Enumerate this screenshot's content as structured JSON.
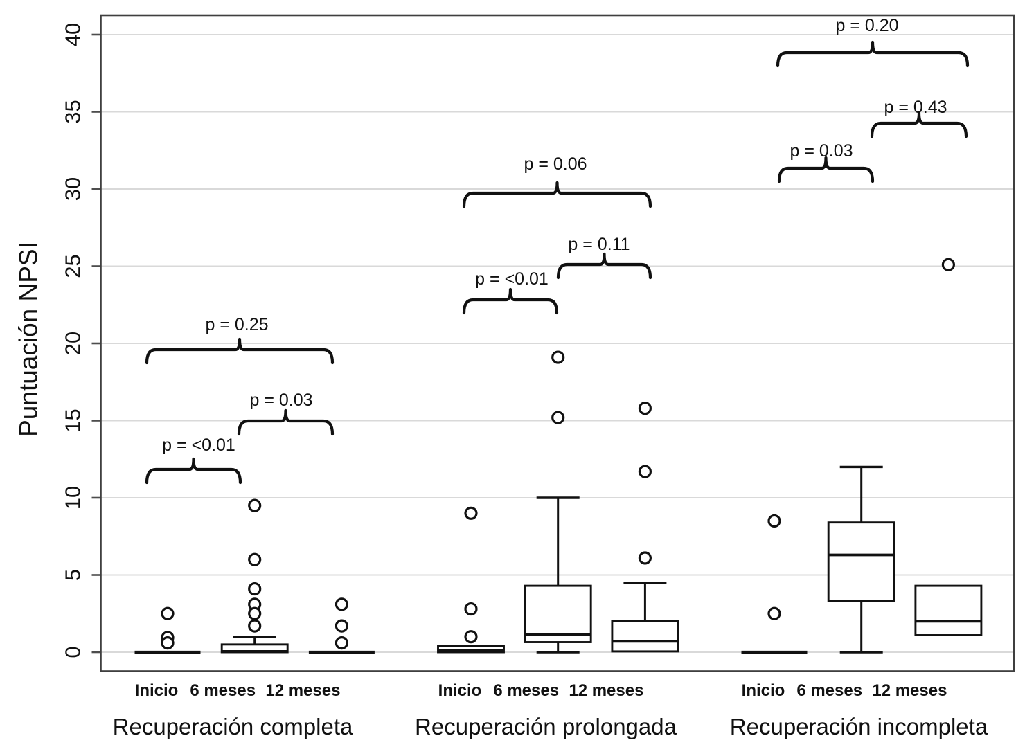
{
  "figure": {
    "y_axis_title": "Puntuación NPSI",
    "colors": {
      "ink": "#111111",
      "frame": "#3f3f3f",
      "grid": "#d9d9d9",
      "tick": "#4d4d4d",
      "background": "#ffffff"
    }
  },
  "chart_data": {
    "type": "boxplot",
    "title": "",
    "xlabel": "",
    "ylabel": "Puntuación NPSI",
    "ylim": [
      0,
      40
    ],
    "yticks": [
      0,
      5,
      10,
      15,
      20,
      25,
      30,
      35,
      40
    ],
    "grid": true,
    "legend": "none",
    "x_groups": [
      {
        "label": "Recuperación completa",
        "timepoints": [
          "Inicio",
          "6 meses",
          "12 meses"
        ]
      },
      {
        "label": "Recuperación prolongada",
        "timepoints": [
          "Inicio",
          "6 meses",
          "12 meses"
        ]
      },
      {
        "label": "Recuperación incompleta",
        "timepoints": [
          "Inicio",
          "6 meses",
          "12 meses"
        ]
      }
    ],
    "boxes": [
      {
        "group": "Recuperación completa",
        "timepoint": "Inicio",
        "q1": 0,
        "median": 0,
        "q3": 0,
        "outliers": [
          2.5,
          0.95,
          0.6
        ]
      },
      {
        "group": "Recuperación completa",
        "timepoint": "6 meses",
        "q1": 0,
        "median": 0.05,
        "q3": 0.5,
        "whisker_high": 1.0,
        "outliers": [
          9.5,
          6.0,
          4.1,
          3.1,
          2.5,
          1.7
        ]
      },
      {
        "group": "Recuperación completa",
        "timepoint": "12 meses",
        "q1": 0,
        "median": 0,
        "q3": 0,
        "outliers": [
          3.1,
          1.7,
          0.6
        ]
      },
      {
        "group": "Recuperación prolongada",
        "timepoint": "Inicio",
        "q1": 0,
        "median": 0.12,
        "q3": 0.4,
        "outliers": [
          9.0,
          2.8,
          1.0
        ]
      },
      {
        "group": "Recuperación prolongada",
        "timepoint": "6 meses",
        "q1": 0.65,
        "median": 1.15,
        "q3": 4.3,
        "whisker_low": 0,
        "whisker_high": 10.0,
        "outliers": [
          19.1,
          15.2
        ]
      },
      {
        "group": "Recuperación prolongada",
        "timepoint": "12 meses",
        "q1": 0.05,
        "median": 0.7,
        "q3": 2.0,
        "whisker_high": 4.5,
        "outliers": [
          15.8,
          11.7,
          6.1
        ]
      },
      {
        "group": "Recuperación incompleta",
        "timepoint": "Inicio",
        "q1": 0,
        "median": 0,
        "q3": 0,
        "outliers": [
          8.5,
          2.5
        ]
      },
      {
        "group": "Recuperación incompleta",
        "timepoint": "6 meses",
        "q1": 3.3,
        "median": 6.3,
        "q3": 8.4,
        "whisker_low": 0,
        "whisker_high": 12.0,
        "outliers": []
      },
      {
        "group": "Recuperación incompleta",
        "timepoint": "12 meses",
        "q1": 1.1,
        "median": 2.0,
        "q3": 4.3,
        "outliers": [
          25.1
        ]
      }
    ],
    "comparisons": [
      {
        "group": "Recuperación completa",
        "between": [
          "Inicio",
          "6 meses"
        ],
        "p_label": "p = <0.01"
      },
      {
        "group": "Recuperación completa",
        "between": [
          "6 meses",
          "12 meses"
        ],
        "p_label": "p = 0.03"
      },
      {
        "group": "Recuperación completa",
        "between": [
          "Inicio",
          "12 meses"
        ],
        "p_label": "p = 0.25"
      },
      {
        "group": "Recuperación prolongada",
        "between": [
          "Inicio",
          "6 meses"
        ],
        "p_label": "p = <0.01"
      },
      {
        "group": "Recuperación prolongada",
        "between": [
          "6 meses",
          "12 meses"
        ],
        "p_label": "p = 0.11"
      },
      {
        "group": "Recuperación prolongada",
        "between": [
          "Inicio",
          "12 meses"
        ],
        "p_label": "p = 0.06"
      },
      {
        "group": "Recuperación incompleta",
        "between": [
          "Inicio",
          "6 meses"
        ],
        "p_label": "p = 0.03"
      },
      {
        "group": "Recuperación incompleta",
        "between": [
          "6 meses",
          "12 meses"
        ],
        "p_label": "p = 0.43"
      },
      {
        "group": "Recuperación incompleta",
        "between": [
          "Inicio",
          "12 meses"
        ],
        "p_label": "p = 0.20"
      }
    ]
  }
}
